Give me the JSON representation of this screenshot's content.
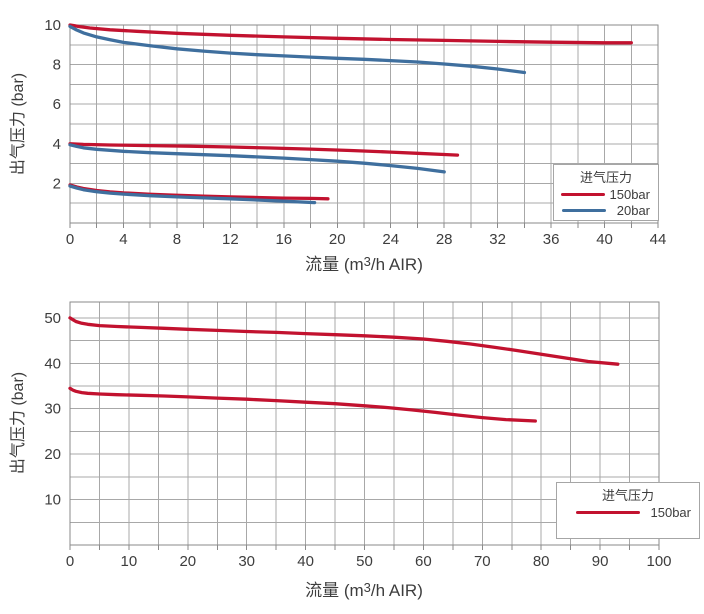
{
  "colors": {
    "red": "#c2122f",
    "blue": "#3f6f9e",
    "grid": "#a8a8a8",
    "frame": "#8a8a8a",
    "text": "#3d3d3d"
  },
  "chart_data": [
    {
      "type": "line",
      "title": "",
      "xlabel_parts": [
        "流量 (m",
        "3",
        "/h AIR)"
      ],
      "ylabel": "出气压力 (bar)",
      "xlim": [
        0,
        44
      ],
      "xtick_step": 4,
      "xgrid_step": 2,
      "ylim": [
        0,
        10
      ],
      "ytick_step": 2,
      "ytick_min": 2,
      "ygrid_step": 1,
      "grid": true,
      "legend": {
        "title": "进气压力",
        "position": "bottom-right",
        "items": [
          {
            "label": "150bar",
            "color": "red"
          },
          {
            "label": "20bar",
            "color": "blue"
          }
        ]
      },
      "series": [
        {
          "label": "150bar",
          "color": "red",
          "points": [
            [
              0,
              10
            ],
            [
              0.3,
              9.97
            ],
            [
              0.7,
              9.92
            ],
            [
              1.5,
              9.85
            ],
            [
              3,
              9.76
            ],
            [
              5,
              9.68
            ],
            [
              8,
              9.58
            ],
            [
              12,
              9.48
            ],
            [
              16,
              9.4
            ],
            [
              20,
              9.33
            ],
            [
              24,
              9.27
            ],
            [
              28,
              9.22
            ],
            [
              32,
              9.17
            ],
            [
              36,
              9.13
            ],
            [
              40,
              9.1
            ],
            [
              42,
              9.1
            ]
          ]
        },
        {
          "label": "20bar",
          "color": "blue",
          "points": [
            [
              0,
              9.93
            ],
            [
              0.5,
              9.75
            ],
            [
              1,
              9.6
            ],
            [
              2,
              9.4
            ],
            [
              3,
              9.25
            ],
            [
              4,
              9.12
            ],
            [
              6,
              8.95
            ],
            [
              8,
              8.8
            ],
            [
              10,
              8.68
            ],
            [
              12,
              8.58
            ],
            [
              14,
              8.5
            ],
            [
              16,
              8.44
            ],
            [
              18,
              8.38
            ],
            [
              20,
              8.32
            ],
            [
              22,
              8.27
            ],
            [
              24,
              8.2
            ],
            [
              26,
              8.13
            ],
            [
              28,
              8.03
            ],
            [
              30,
              7.92
            ],
            [
              32,
              7.78
            ],
            [
              34,
              7.6
            ]
          ]
        },
        {
          "label": "150bar",
          "color": "red",
          "points": [
            [
              0,
              4
            ],
            [
              1,
              3.97
            ],
            [
              3,
              3.94
            ],
            [
              6,
              3.91
            ],
            [
              9,
              3.88
            ],
            [
              12,
              3.84
            ],
            [
              15,
              3.79
            ],
            [
              18,
              3.73
            ],
            [
              21,
              3.66
            ],
            [
              24,
              3.58
            ],
            [
              26,
              3.52
            ],
            [
              28,
              3.46
            ],
            [
              29,
              3.43
            ]
          ]
        },
        {
          "label": "20bar",
          "color": "blue",
          "points": [
            [
              0,
              3.95
            ],
            [
              0.5,
              3.87
            ],
            [
              1,
              3.8
            ],
            [
              2,
              3.72
            ],
            [
              4,
              3.62
            ],
            [
              6,
              3.55
            ],
            [
              8,
              3.5
            ],
            [
              10,
              3.45
            ],
            [
              12,
              3.4
            ],
            [
              14,
              3.34
            ],
            [
              16,
              3.28
            ],
            [
              18,
              3.2
            ],
            [
              20,
              3.12
            ],
            [
              22,
              3.02
            ],
            [
              24,
              2.9
            ],
            [
              26,
              2.76
            ],
            [
              28,
              2.58
            ]
          ]
        },
        {
          "label": "150bar",
          "color": "red",
          "points": [
            [
              0,
              1.92
            ],
            [
              0.5,
              1.82
            ],
            [
              1,
              1.74
            ],
            [
              2,
              1.64
            ],
            [
              3,
              1.57
            ],
            [
              4,
              1.52
            ],
            [
              6,
              1.45
            ],
            [
              8,
              1.4
            ],
            [
              10,
              1.36
            ],
            [
              12,
              1.32
            ],
            [
              14,
              1.29
            ],
            [
              16,
              1.26
            ],
            [
              18,
              1.24
            ],
            [
              19.3,
              1.22
            ]
          ]
        },
        {
          "label": "20bar",
          "color": "blue",
          "points": [
            [
              0,
              1.87
            ],
            [
              0.5,
              1.77
            ],
            [
              1,
              1.68
            ],
            [
              2,
              1.58
            ],
            [
              3,
              1.51
            ],
            [
              4,
              1.46
            ],
            [
              6,
              1.38
            ],
            [
              8,
              1.32
            ],
            [
              10,
              1.27
            ],
            [
              12,
              1.22
            ],
            [
              14,
              1.16
            ],
            [
              16,
              1.1
            ],
            [
              18.3,
              1.03
            ]
          ]
        }
      ]
    },
    {
      "type": "line",
      "title": "",
      "xlabel_parts": [
        "流量 (m",
        "3",
        "/h AIR)"
      ],
      "ylabel": "出气压力 (bar)",
      "xlim": [
        0,
        100
      ],
      "xtick_step": 10,
      "xgrid_step": 5,
      "ylim": [
        0,
        53.5
      ],
      "ytick_step": 10,
      "ytick_min": 10,
      "ygrid_step": 5,
      "grid": true,
      "legend": {
        "title": "进气压力",
        "position": "bottom-right",
        "items": [
          {
            "label": "150bar",
            "color": "red"
          }
        ]
      },
      "series": [
        {
          "label": "150bar",
          "color": "red",
          "points": [
            [
              0,
              50
            ],
            [
              0.5,
              49.6
            ],
            [
              1,
              49.2
            ],
            [
              2,
              48.8
            ],
            [
              3,
              48.6
            ],
            [
              5,
              48.3
            ],
            [
              8,
              48.1
            ],
            [
              12,
              47.9
            ],
            [
              16,
              47.7
            ],
            [
              20,
              47.5
            ],
            [
              25,
              47.25
            ],
            [
              30,
              47
            ],
            [
              35,
              46.8
            ],
            [
              40,
              46.55
            ],
            [
              45,
              46.3
            ],
            [
              50,
              46.05
            ],
            [
              55,
              45.75
            ],
            [
              60,
              45.35
            ],
            [
              64,
              44.85
            ],
            [
              68,
              44.25
            ],
            [
              72,
              43.55
            ],
            [
              76,
              42.8
            ],
            [
              80,
              42
            ],
            [
              84,
              41.2
            ],
            [
              88,
              40.4
            ],
            [
              93,
              39.8
            ]
          ]
        },
        {
          "label": "150bar",
          "color": "red",
          "points": [
            [
              0,
              34.5
            ],
            [
              0.5,
              34.1
            ],
            [
              1,
              33.85
            ],
            [
              2,
              33.55
            ],
            [
              3,
              33.4
            ],
            [
              5,
              33.25
            ],
            [
              8,
              33.1
            ],
            [
              12,
              32.95
            ],
            [
              16,
              32.8
            ],
            [
              20,
              32.6
            ],
            [
              25,
              32.35
            ],
            [
              30,
              32.1
            ],
            [
              35,
              31.8
            ],
            [
              40,
              31.45
            ],
            [
              45,
              31.1
            ],
            [
              50,
              30.65
            ],
            [
              54,
              30.25
            ],
            [
              58,
              29.75
            ],
            [
              62,
              29.2
            ],
            [
              66,
              28.6
            ],
            [
              70,
              28.05
            ],
            [
              74,
              27.6
            ],
            [
              79,
              27.3
            ]
          ]
        }
      ]
    }
  ]
}
